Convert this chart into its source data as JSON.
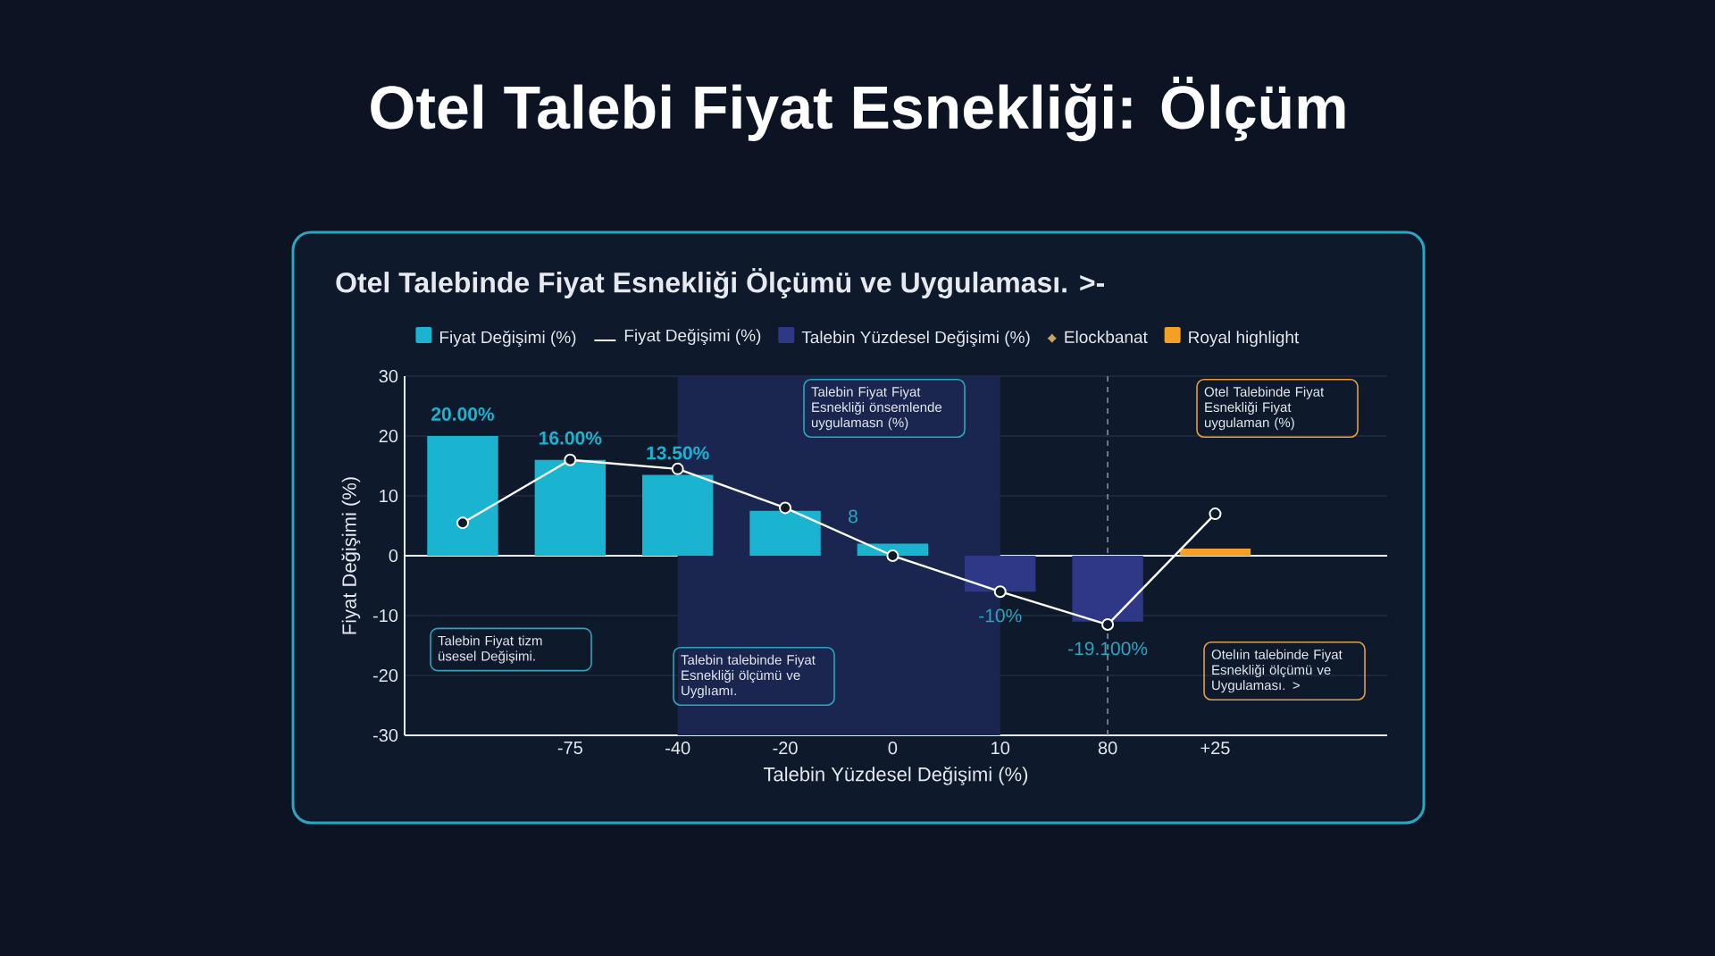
{
  "chart_data": {
    "type": "bar",
    "title": "Otel Talebi Fiyat Esnekliği: Ölçüm",
    "subtitle": "Otel Talebinde Fiyat Esnekliği Ölçümü ve Uygulaması. >-",
    "xlabel": "Talebin Yüzdesel Değişimi (%)",
    "ylabel": "Fiyat Değişimi (%)",
    "categories": [
      null,
      "-75",
      "-40",
      "-20",
      "0",
      "10",
      "80",
      "+25"
    ],
    "series": [
      {
        "name": "Fiyat Değişimi (%)",
        "color": "#1ab4d0",
        "values": [
          20,
          16,
          13.5,
          7.5,
          2,
          null,
          null,
          null
        ],
        "value_labels": [
          "20.00%",
          "16.00%",
          "13.50%",
          null,
          null,
          null,
          null,
          null
        ]
      },
      {
        "name": "Fiyat Değişimi (%)",
        "type": "line",
        "color": "#ffffff",
        "marker": "circle",
        "values": [
          5.5,
          16,
          14.5,
          8,
          0,
          -6,
          -11.5,
          7
        ]
      },
      {
        "name": "Talebin Yüzdesel Değişimi (%)",
        "color": "#2e3886",
        "values": [
          null,
          null,
          null,
          null,
          null,
          -6,
          -11,
          null
        ]
      },
      {
        "name": "Elockbanat",
        "type": "scatter",
        "color": "#c9a55a",
        "marker": "star",
        "values": [
          null,
          null,
          null,
          null,
          null,
          null,
          null,
          null
        ]
      },
      {
        "name": "Royal highlight",
        "color": "#f5a023",
        "values": [
          null,
          null,
          null,
          null,
          null,
          null,
          null,
          1.2
        ]
      }
    ],
    "ylim": [
      -30,
      30
    ],
    "yticks": [
      -30,
      -20,
      -10,
      0,
      10,
      20,
      30
    ],
    "grid": "y",
    "legend": "top",
    "ref_lines": [
      {
        "axis": "x",
        "value": "80",
        "line_style": "dashed",
        "color": "#8a8fa0"
      }
    ],
    "bands": [
      {
        "axis": "x",
        "from": "-40",
        "to": "10",
        "color": "#1a2650"
      }
    ],
    "annotations": [
      "Talebin Fiyat Fiyat Esnekliği önsemlende uygulamasn (%)",
      "Otel Talebinde Fiyat Esnekliği Fiyat uygulaman (%)",
      "Talebin Fiyat tizm üsesel Değişimi.",
      "Talebin talebinde Fiyat Esnekliği ölçümü ve Uyglıamı.",
      "Otelıin talebinde Fiyat Esnekliği ölçümü ve Uygulaması. >",
      "8",
      {
        "text": "-10%",
        "x": "10",
        "y": -10
      },
      {
        "text": "-19.100%",
        "x": "80",
        "y": -15.5
      }
    ]
  }
}
